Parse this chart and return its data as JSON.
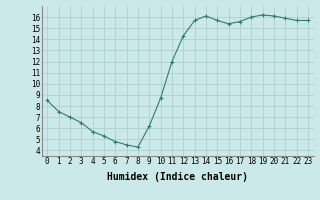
{
  "x": [
    0,
    1,
    2,
    3,
    4,
    5,
    6,
    7,
    8,
    9,
    10,
    11,
    12,
    13,
    14,
    15,
    16,
    17,
    18,
    19,
    20,
    21,
    22,
    23
  ],
  "y": [
    8.5,
    7.5,
    7.0,
    6.5,
    5.7,
    5.3,
    4.8,
    4.5,
    4.3,
    6.2,
    8.7,
    12.0,
    14.3,
    15.7,
    16.1,
    15.7,
    15.4,
    15.6,
    16.0,
    16.2,
    16.1,
    15.9,
    15.7,
    15.7
  ],
  "line_color": "#2e7d6e",
  "marker": "+",
  "marker_size": 3,
  "bg_color": "#cce9e9",
  "grid_color": "#aacccc",
  "xlabel": "Humidex (Indice chaleur)",
  "xlim": [
    -0.5,
    23.5
  ],
  "ylim": [
    3.5,
    17
  ],
  "yticks": [
    4,
    5,
    6,
    7,
    8,
    9,
    10,
    11,
    12,
    13,
    14,
    15,
    16
  ],
  "xticks": [
    0,
    1,
    2,
    3,
    4,
    5,
    6,
    7,
    8,
    9,
    10,
    11,
    12,
    13,
    14,
    15,
    16,
    17,
    18,
    19,
    20,
    21,
    22,
    23
  ],
  "tick_label_fontsize": 5.5,
  "xlabel_fontsize": 7
}
